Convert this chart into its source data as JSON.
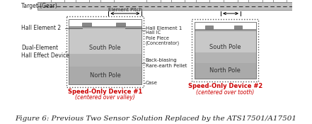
{
  "bg_color": "#ffffff",
  "title_text": "Figure 6: Previous Two Sensor Solution Replaced by the ATS17501/A17501",
  "title_fontsize": 7.5,
  "title_style": "italic",
  "left_device_label": "Speed-Only Device #1",
  "left_device_sublabel": "(centered over valley)",
  "right_device_label": "Speed-Only Device #2",
  "right_device_sublabel": "(centered over tooth)",
  "device_label_color": "#cc0000",
  "south_pole_text": "South Pole",
  "north_pole_text": "North Pole",
  "gear_color": "#c0c0c0",
  "tooth_color": "#ffffff",
  "south_color_top": "#cccccc",
  "south_color_bot": "#888888",
  "north_color": "#aaaaaa",
  "bump_color": "#888888",
  "pole_bar_color": "#999999",
  "box_outer_color": "#555555",
  "box_inner_color": "#888888",
  "label_color": "#222222",
  "element_pitch_text": "Element Pitch",
  "label_target": "Target (Gear)",
  "label_hall2": "Hall Element 2",
  "label_dual": "Dual-Element\nHall Effect Device",
  "label_hall1": "Hall Element 1",
  "label_hallic": "Hall IC",
  "label_polepice": "Pole Piece\n(Concentrator)",
  "label_backbias": "Back-biasing\nRare-earth Pellet",
  "label_case": "Case"
}
